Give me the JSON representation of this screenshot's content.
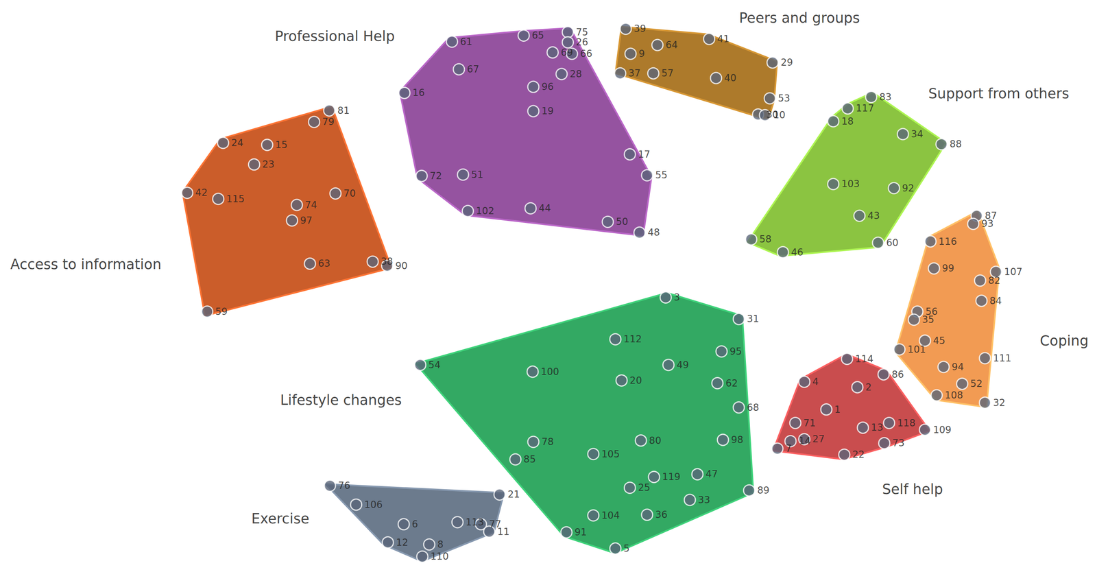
{
  "chart_data": {
    "type": "scatter",
    "tick_labels": false,
    "grid": false,
    "xlim": [
      0,
      1568
    ],
    "ylim": [
      818,
      0
    ],
    "series": [
      {
        "name": "Professional Help",
        "color": "#9553a0",
        "label_x": 474,
        "label_y": 36,
        "labels": [
          61,
          65,
          75,
          26,
          69,
          66,
          67,
          28,
          96,
          16,
          19,
          17,
          55,
          72,
          51,
          102,
          44,
          50,
          48
        ],
        "x": [
          644,
          748,
          812,
          812,
          790,
          818,
          654,
          803,
          762,
          575,
          762,
          902,
          927,
          600,
          660,
          667,
          758,
          870,
          916
        ],
        "y": [
          44,
          35,
          30,
          45,
          60,
          62,
          85,
          92,
          111,
          120,
          147,
          211,
          242,
          243,
          241,
          295,
          291,
          311,
          327
        ]
      },
      {
        "name": "Peers and groups",
        "color": "#ad7a2b",
        "label_x": 1148,
        "label_y": 9,
        "labels": [
          39,
          64,
          41,
          9,
          29,
          37,
          57,
          40,
          53,
          30,
          10
        ],
        "x": [
          896,
          942,
          1017,
          903,
          1109,
          888,
          936,
          1027,
          1105,
          1088,
          1098
        ],
        "y": [
          25,
          49,
          40,
          62,
          75,
          91,
          91,
          98,
          128,
          152,
          153
        ]
      },
      {
        "name": "Support from others",
        "color": "#8bc441",
        "label_x": 1437,
        "label_y": 121,
        "labels": [
          83,
          117,
          18,
          34,
          88,
          103,
          92,
          43,
          58,
          46,
          60
        ],
        "x": [
          1252,
          1218,
          1197,
          1298,
          1354,
          1197,
          1285,
          1235,
          1078,
          1124,
          1262
        ],
        "y": [
          126,
          143,
          162,
          181,
          196,
          255,
          261,
          302,
          337,
          356,
          342
        ]
      },
      {
        "name": "Coping",
        "color": "#f29b53",
        "label_x": 1532,
        "label_y": 487,
        "labels": [
          87,
          93,
          116,
          99,
          107,
          82,
          84,
          56,
          35,
          45,
          101,
          111,
          94,
          52,
          108,
          32
        ],
        "x": [
          1405,
          1400,
          1338,
          1343,
          1433,
          1410,
          1412,
          1319,
          1314,
          1330,
          1293,
          1417,
          1357,
          1384,
          1347,
          1417
        ],
        "y": [
          302,
          314,
          340,
          380,
          385,
          398,
          428,
          444,
          456,
          487,
          500,
          513,
          526,
          551,
          568,
          579
        ]
      },
      {
        "name": "Self help",
        "color": "#c94d4e",
        "label_x": 1312,
        "label_y": 707,
        "labels": [
          114,
          86,
          4,
          2,
          1,
          71,
          13,
          118,
          109,
          14,
          27,
          7,
          73,
          22
        ],
        "x": [
          1217,
          1270,
          1155,
          1232,
          1187,
          1142,
          1240,
          1278,
          1330,
          1135,
          1155,
          1116,
          1271,
          1213
        ],
        "y": [
          514,
          537,
          548,
          556,
          589,
          609,
          616,
          609,
          619,
          636,
          633,
          647,
          639,
          656
        ]
      },
      {
        "name": "Lifestyle changes",
        "color": "#33a963",
        "label_x": 483,
        "label_y": 575,
        "labels": [
          3,
          31,
          112,
          95,
          54,
          100,
          49,
          20,
          62,
          68,
          78,
          80,
          98,
          85,
          105,
          119,
          47,
          25,
          89,
          33,
          104,
          36,
          91,
          5
        ],
        "x": [
          954,
          1060,
          881,
          1035,
          598,
          761,
          958,
          890,
          1029,
          1060,
          762,
          918,
          1037,
          736,
          849,
          937,
          1000,
          902,
          1075,
          989,
          849,
          927,
          810,
          881
        ],
        "y": [
          423,
          455,
          485,
          503,
          523,
          533,
          523,
          546,
          550,
          586,
          637,
          635,
          634,
          663,
          655,
          689,
          685,
          705,
          709,
          723,
          746,
          745,
          771,
          795
        ]
      },
      {
        "name": "Access to information",
        "color": "#cb5d2a",
        "label_x": 113,
        "label_y": 374,
        "labels": [
          81,
          79,
          24,
          15,
          23,
          42,
          115,
          70,
          74,
          97,
          63,
          38,
          90,
          59
        ],
        "x": [
          466,
          444,
          312,
          376,
          357,
          260,
          305,
          475,
          419,
          412,
          438,
          529,
          550,
          289
        ],
        "y": [
          146,
          163,
          194,
          197,
          226,
          268,
          277,
          269,
          286,
          309,
          373,
          370,
          376,
          444
        ]
      },
      {
        "name": "Exercise",
        "color": "#6c7b8d",
        "label_x": 395,
        "label_y": 751,
        "labels": [
          76,
          106,
          21,
          6,
          113,
          77,
          11,
          12,
          8,
          110
        ],
        "x": [
          467,
          505,
          713,
          574,
          652,
          686,
          698,
          551,
          611,
          601
        ],
        "y": [
          702,
          730,
          715,
          759,
          756,
          759,
          770,
          786,
          789,
          807
        ]
      }
    ]
  }
}
